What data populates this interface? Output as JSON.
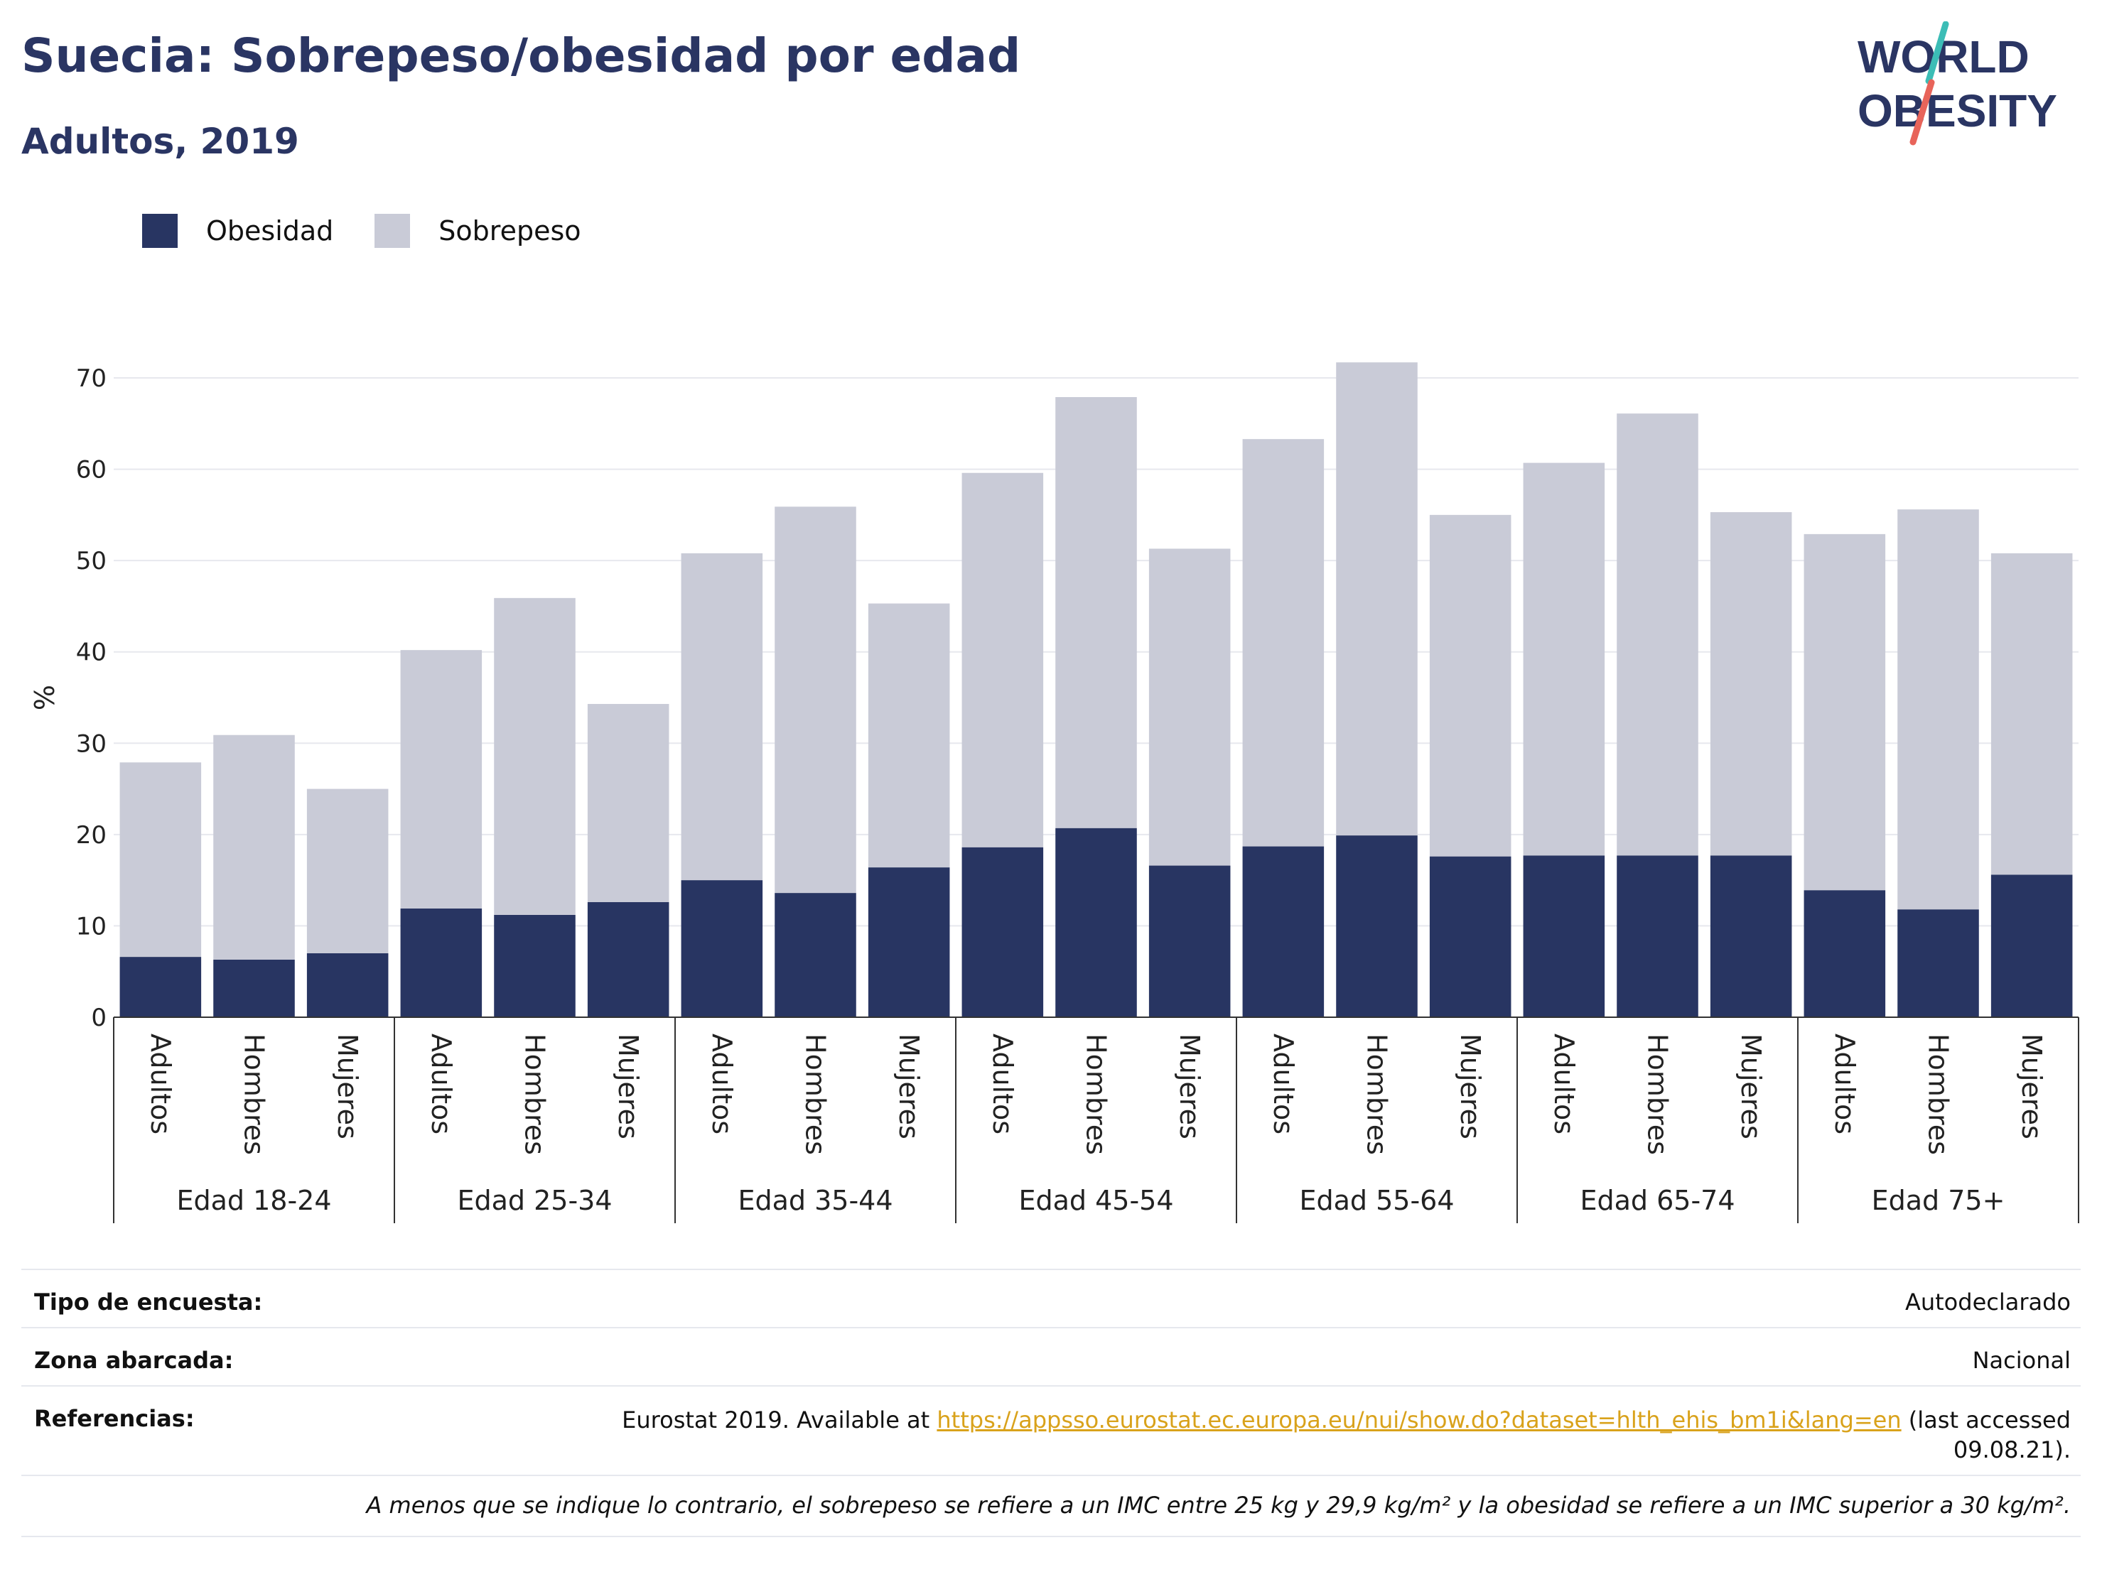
{
  "header": {
    "title": "Suecia: Sobrepeso/obesidad por edad",
    "subtitle": "Adultos, 2019",
    "logo_line1": "WORLD",
    "logo_line2": "OBESITY"
  },
  "legend": {
    "items": [
      {
        "label": "Obesidad",
        "color": "#283562"
      },
      {
        "label": "Sobrepeso",
        "color": "#c9cbd7"
      }
    ]
  },
  "chart_data": {
    "type": "bar",
    "stacked": true,
    "ylabel": "%",
    "ylim": [
      0,
      70
    ],
    "yticks": [
      0,
      10,
      20,
      30,
      40,
      50,
      60,
      70
    ],
    "grid": true,
    "legend_position": "top-left",
    "groups": [
      "Edad 18-24",
      "Edad 25-34",
      "Edad 35-44",
      "Edad 45-54",
      "Edad 55-64",
      "Edad 65-74",
      "Edad 75+"
    ],
    "subcategories": [
      "Adultos",
      "Hombres",
      "Mujeres"
    ],
    "series": [
      {
        "name": "Obesidad",
        "color": "#283562",
        "values": [
          6.6,
          6.3,
          7.0,
          11.9,
          11.2,
          12.6,
          15.0,
          13.6,
          16.4,
          18.6,
          20.7,
          16.6,
          18.7,
          19.9,
          17.6,
          17.7,
          17.7,
          17.7,
          13.9,
          11.8,
          15.6
        ]
      },
      {
        "name": "Sobrepeso",
        "color": "#c9cbd7",
        "values": [
          21.3,
          24.6,
          18.0,
          28.3,
          34.7,
          21.7,
          35.8,
          42.3,
          28.9,
          41.0,
          47.2,
          34.7,
          44.6,
          51.8,
          37.4,
          43.0,
          48.4,
          37.6,
          39.0,
          43.8,
          35.2
        ]
      }
    ]
  },
  "footer": {
    "survey_label": "Tipo de encuesta:",
    "survey_value": "Autodeclarado",
    "area_label": "Zona abarcada:",
    "area_value": "Nacional",
    "ref_label": "Referencias:",
    "ref_prefix": "Eurostat 2019. Available at",
    "ref_link": "https://appsso.eurostat.ec.europa.eu/nui/show.do?dataset=hlth_ehis_bm1i&lang=en",
    "ref_suffix": "(last accessed",
    "ref_date": "09.08.21).",
    "note": "A menos que se indique lo contrario, el sobrepeso se refiere a un IMC entre 25 kg y 29,9 kg/m² y la obesidad se refiere a un IMC superior a 30 kg/m²."
  }
}
